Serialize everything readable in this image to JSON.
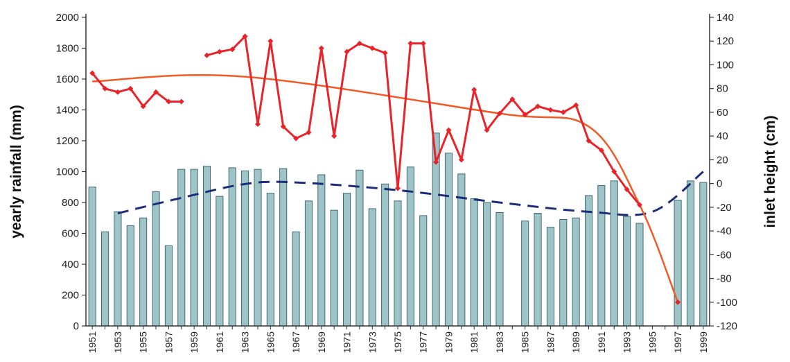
{
  "chart_data": {
    "type": "bar",
    "x": [
      1951,
      1952,
      1953,
      1954,
      1955,
      1956,
      1957,
      1958,
      1959,
      1960,
      1961,
      1962,
      1963,
      1964,
      1965,
      1966,
      1967,
      1968,
      1969,
      1970,
      1971,
      1972,
      1973,
      1974,
      1975,
      1976,
      1977,
      1978,
      1979,
      1980,
      1981,
      1982,
      1983,
      1984,
      1985,
      1986,
      1987,
      1988,
      1989,
      1990,
      1991,
      1992,
      1993,
      1994,
      1995,
      1996,
      1997,
      1998,
      1999
    ],
    "x_tick_labels": [
      "1951",
      "1953",
      "1955",
      "1957",
      "1959",
      "1961",
      "1963",
      "1965",
      "1967",
      "1969",
      "1971",
      "1973",
      "1975",
      "1977",
      "1979",
      "1981",
      "1983",
      "1985",
      "1987",
      "1989",
      "1991",
      "1993",
      "1995",
      "1997",
      "1999"
    ],
    "ylabel": "yearly rainfall (mm)",
    "ylim": [
      0,
      2000
    ],
    "y_ticks": [
      0,
      200,
      400,
      600,
      800,
      1000,
      1200,
      1400,
      1600,
      1800,
      2000
    ],
    "y2label": "inlet height (cm)",
    "y2lim": [
      -120,
      140
    ],
    "y2_ticks": [
      -120,
      -100,
      -80,
      -60,
      -40,
      -20,
      0,
      20,
      40,
      60,
      80,
      100,
      120,
      140
    ],
    "grid": false,
    "series": [
      {
        "type": "bar",
        "axis": "left",
        "color": "#9fc4c8",
        "values": [
          900,
          610,
          740,
          650,
          700,
          870,
          520,
          1015,
          1015,
          1035,
          840,
          1025,
          1005,
          1015,
          860,
          1020,
          610,
          810,
          980,
          750,
          860,
          1010,
          760,
          920,
          810,
          1030,
          715,
          1250,
          1120,
          985,
          825,
          800,
          735,
          null,
          680,
          730,
          640,
          690,
          700,
          845,
          910,
          940,
          710,
          665,
          null,
          null,
          815,
          940,
          930
        ]
      },
      {
        "type": "line",
        "axis": "right",
        "color": "#e8232a",
        "markers": "diamond",
        "values": [
          93,
          80,
          77,
          80,
          65,
          77,
          69,
          69,
          null,
          108,
          111,
          113,
          124,
          50,
          120,
          48,
          38,
          43,
          114,
          40,
          111,
          118,
          114,
          110,
          -4,
          118,
          118,
          18,
          45,
          20,
          79,
          45,
          59,
          71,
          58,
          65,
          62,
          60,
          66,
          36,
          28,
          10,
          -5,
          -18,
          null,
          null,
          -100,
          null,
          null
        ]
      },
      {
        "type": "line",
        "axis": "right",
        "color": "#f15a24",
        "style": "smooth-trend",
        "values": [
          86,
          null,
          null,
          null,
          null,
          null,
          null,
          null,
          null,
          null,
          null,
          null,
          90,
          null,
          null,
          null,
          null,
          null,
          null,
          null,
          null,
          null,
          null,
          null,
          null,
          null,
          null,
          null,
          null,
          null,
          null,
          null,
          59,
          null,
          null,
          null,
          null,
          null,
          null,
          48,
          null,
          null,
          null,
          -18,
          null,
          null,
          -100,
          null,
          null
        ]
      },
      {
        "type": "line",
        "axis": "left",
        "color": "#1b2d7a",
        "style": "dashed-trend",
        "values": [
          null,
          null,
          730,
          null,
          null,
          null,
          null,
          830,
          null,
          null,
          null,
          null,
          920,
          null,
          null,
          null,
          930,
          null,
          null,
          null,
          null,
          null,
          null,
          null,
          880,
          null,
          null,
          null,
          null,
          null,
          null,
          null,
          800,
          null,
          null,
          null,
          null,
          null,
          null,
          740,
          null,
          null,
          null,
          null,
          740,
          null,
          null,
          null,
          1000
        ]
      }
    ]
  }
}
